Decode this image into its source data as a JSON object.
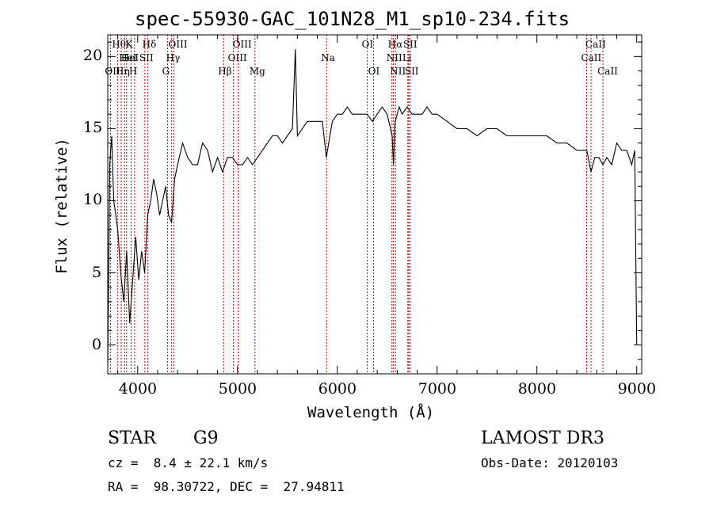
{
  "chart_data": {
    "type": "line",
    "title": "spec-55930-GAC_101N28_M1_sp10-234.fits",
    "xlabel": "Wavelength (Å)",
    "ylabel": "Flux (relative)",
    "xlim": [
      3700,
      9050
    ],
    "ylim": [
      -2,
      21.5
    ],
    "xticks": [
      4000,
      5000,
      6000,
      7000,
      8000,
      9000
    ],
    "xtick_labels": [
      "4000",
      "5000",
      "6000",
      "7000",
      "8000",
      "9000"
    ],
    "yticks": [
      0,
      5,
      10,
      15,
      20
    ],
    "ytick_labels": [
      "0",
      "5",
      "10",
      "15",
      "20"
    ],
    "series": [
      {
        "name": "flux",
        "x": [
          3700,
          3720,
          3740,
          3760,
          3780,
          3800,
          3830,
          3860,
          3890,
          3920,
          3950,
          3980,
          4010,
          4040,
          4070,
          4100,
          4130,
          4160,
          4190,
          4220,
          4250,
          4280,
          4310,
          4340,
          4370,
          4400,
          4450,
          4500,
          4550,
          4600,
          4650,
          4700,
          4750,
          4800,
          4850,
          4900,
          4950,
          5000,
          5050,
          5100,
          5150,
          5200,
          5250,
          5300,
          5350,
          5400,
          5450,
          5500,
          5550,
          5580,
          5600,
          5650,
          5700,
          5750,
          5800,
          5850,
          5890,
          5950,
          6000,
          6050,
          6100,
          6150,
          6200,
          6250,
          6300,
          6350,
          6400,
          6450,
          6500,
          6550,
          6563,
          6580,
          6620,
          6650,
          6700,
          6750,
          6800,
          6850,
          6900,
          6950,
          7000,
          7100,
          7200,
          7300,
          7400,
          7500,
          7600,
          7700,
          7800,
          7900,
          8000,
          8100,
          8200,
          8300,
          8400,
          8450,
          8500,
          8542,
          8580,
          8620,
          8662,
          8700,
          8750,
          8800,
          8850,
          8900,
          8950,
          8980,
          9000
        ],
        "values": [
          -1.5,
          12.5,
          14.5,
          10.0,
          9.0,
          8.0,
          5.0,
          3.0,
          6.5,
          1.5,
          4.5,
          7.5,
          4.5,
          6.5,
          5.0,
          9.0,
          10.0,
          11.5,
          10.5,
          9.0,
          10.0,
          11.0,
          9.0,
          8.5,
          11.5,
          12.5,
          14.0,
          13.0,
          12.5,
          12.5,
          14.0,
          13.5,
          12.0,
          13.0,
          12.0,
          13.0,
          13.0,
          12.5,
          12.5,
          13.0,
          12.5,
          13.0,
          13.5,
          14.0,
          14.5,
          14.5,
          14.0,
          14.5,
          15.0,
          20.5,
          14.5,
          15.0,
          15.5,
          15.5,
          15.5,
          15.5,
          13.0,
          15.5,
          16.0,
          16.0,
          16.5,
          16.0,
          16.0,
          16.0,
          16.0,
          15.5,
          16.0,
          16.5,
          16.0,
          14.5,
          12.5,
          15.5,
          16.5,
          16.0,
          16.5,
          16.0,
          16.0,
          16.0,
          16.5,
          16.0,
          16.0,
          15.5,
          15.0,
          15.0,
          14.5,
          15.0,
          15.0,
          14.5,
          14.5,
          14.5,
          14.5,
          14.5,
          14.0,
          14.0,
          13.5,
          13.5,
          13.5,
          12.0,
          13.0,
          13.0,
          12.5,
          13.0,
          12.5,
          14.0,
          13.5,
          13.5,
          12.5,
          13.5,
          0.0
        ]
      }
    ],
    "lines": [
      {
        "wl": 3727,
        "label": "OII",
        "row": 3
      },
      {
        "wl": 3798,
        "label": "Hθ",
        "row": 1
      },
      {
        "wl": 3835,
        "label": "Hη",
        "row": 3
      },
      {
        "wl": 3869,
        "label": "HeI",
        "row": 2
      },
      {
        "wl": 3889,
        "label": "HeI",
        "row": 2
      },
      {
        "wl": 3934,
        "label": "K",
        "row": 1
      },
      {
        "wl": 3969,
        "label": "H",
        "row": 3
      },
      {
        "wl": 4072,
        "label": "SII",
        "row": 2
      },
      {
        "wl": 4102,
        "label": "Hδ",
        "row": 1
      },
      {
        "wl": 4300,
        "label": "G",
        "row": 3
      },
      {
        "wl": 4340,
        "label": "Hγ",
        "row": 2
      },
      {
        "wl": 4363,
        "label": "OIII",
        "row": 1
      },
      {
        "wl": 4861,
        "label": "Hβ",
        "row": 3
      },
      {
        "wl": 4959,
        "label": "OIII",
        "row": 2
      },
      {
        "wl": 5007,
        "label": "OIII",
        "row": 1
      },
      {
        "wl": 5175,
        "label": "Mg",
        "row": 3
      },
      {
        "wl": 5893,
        "label": "Na",
        "row": 2
      },
      {
        "wl": 6300,
        "label": "OI",
        "row": 1
      },
      {
        "wl": 6364,
        "label": "OI",
        "row": 3
      },
      {
        "wl": 6548,
        "label": "NII",
        "row": 2
      },
      {
        "wl": 6563,
        "label": "Hα",
        "row": 1
      },
      {
        "wl": 6583,
        "label": "NII",
        "row": 3
      },
      {
        "wl": 6707,
        "label": "Li",
        "row": 2
      },
      {
        "wl": 6716,
        "label": "SII",
        "row": 1
      },
      {
        "wl": 6731,
        "label": "SII",
        "row": 3
      },
      {
        "wl": 8498,
        "label": "CaII",
        "row": 2
      },
      {
        "wl": 8542,
        "label": "CaII",
        "row": 1
      },
      {
        "wl": 8662,
        "label": "CaII",
        "row": 3
      }
    ]
  },
  "info": {
    "object_class": "STAR",
    "subclass": "G9",
    "survey": "LAMOST DR3",
    "redshift": "cz =  8.4 ± 22.1 km/s",
    "obs_date": "Obs-Date: 20120103",
    "coords": "RA =  98.30722, DEC =  27.94811"
  }
}
